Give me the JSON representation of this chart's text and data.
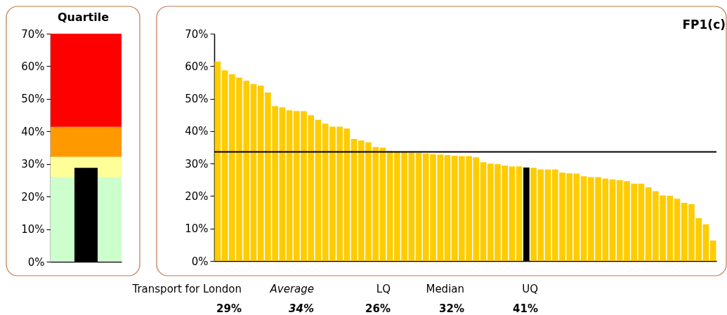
{
  "chart_data": [
    {
      "type": "bar",
      "title": "Quartile",
      "categories": [
        null
      ],
      "values": [
        28.8
      ],
      "colors": [
        "#000000"
      ],
      "ylim": [
        0,
        70
      ],
      "yticks": [
        {
          "value": 0,
          "label": "0%"
        },
        {
          "value": 10,
          "label": "10%"
        },
        {
          "value": 20,
          "label": "20%"
        },
        {
          "value": 30,
          "label": "30%"
        },
        {
          "value": 40,
          "label": "40%"
        },
        {
          "value": 50,
          "label": "50%"
        },
        {
          "value": 60,
          "label": "60%"
        },
        {
          "value": 70,
          "label": "70%"
        }
      ],
      "bands": [
        {
          "axis": "y",
          "from": 0,
          "to": 26.0,
          "color": "#ccffcc"
        },
        {
          "axis": "y",
          "from": 26.0,
          "to": 32.2,
          "color": "#ffff99"
        },
        {
          "axis": "y",
          "from": 32.2,
          "to": 41.4,
          "color": "#ff9900"
        },
        {
          "axis": "y",
          "from": 41.4,
          "to": 70,
          "color": "#ff0000"
        }
      ],
      "tick_labels": "y"
    },
    {
      "type": "bar",
      "title": "FP1(c)",
      "categories": [
        null,
        null,
        null,
        null,
        null,
        null,
        null,
        null,
        null,
        null,
        null,
        null,
        null,
        null,
        null,
        null,
        null,
        null,
        null,
        null,
        null,
        null,
        null,
        null,
        null,
        null,
        null,
        null,
        null,
        null,
        null,
        null,
        null,
        null,
        null,
        null,
        null,
        null,
        null,
        null,
        null,
        null,
        null,
        null,
        null,
        null,
        null,
        null,
        null,
        null,
        null,
        null,
        null,
        null,
        null,
        null,
        null,
        null,
        null,
        null,
        null,
        null,
        null,
        null,
        null,
        null,
        null,
        null,
        null,
        null
      ],
      "values": [
        61.4,
        58.7,
        57.5,
        56.5,
        55.5,
        54.5,
        54.0,
        51.9,
        47.7,
        47.3,
        46.4,
        46.2,
        46.1,
        44.9,
        43.5,
        42.3,
        41.4,
        41.4,
        40.8,
        37.6,
        37.1,
        36.5,
        35.1,
        34.9,
        33.8,
        33.6,
        33.5,
        33.4,
        33.3,
        33.1,
        32.9,
        32.8,
        32.6,
        32.4,
        32.3,
        32.3,
        31.9,
        30.4,
        30.0,
        29.8,
        29.4,
        29.1,
        29.1,
        28.8,
        28.7,
        28.2,
        28.2,
        28.2,
        27.2,
        27.0,
        26.9,
        26.1,
        25.8,
        25.8,
        25.4,
        25.1,
        24.9,
        24.6,
        23.8,
        23.8,
        22.7,
        21.5,
        20.2,
        20.1,
        19.2,
        17.9,
        17.5,
        13.2,
        11.3,
        6.3
      ],
      "colors": [
        "#ffcc00",
        "#ffcc00",
        "#ffcc00",
        "#ffcc00",
        "#ffcc00",
        "#ffcc00",
        "#ffcc00",
        "#ffcc00",
        "#ffcc00",
        "#ffcc00",
        "#ffcc00",
        "#ffcc00",
        "#ffcc00",
        "#ffcc00",
        "#ffcc00",
        "#ffcc00",
        "#ffcc00",
        "#ffcc00",
        "#ffcc00",
        "#ffcc00",
        "#ffcc00",
        "#ffcc00",
        "#ffcc00",
        "#ffcc00",
        "#ffcc00",
        "#ffcc00",
        "#ffcc00",
        "#ffcc00",
        "#ffcc00",
        "#ffcc00",
        "#ffcc00",
        "#ffcc00",
        "#ffcc00",
        "#ffcc00",
        "#ffcc00",
        "#ffcc00",
        "#ffcc00",
        "#ffcc00",
        "#ffcc00",
        "#ffcc00",
        "#ffcc00",
        "#ffcc00",
        "#ffcc00",
        "#000000",
        "#ffcc00",
        "#ffcc00",
        "#ffcc00",
        "#ffcc00",
        "#ffcc00",
        "#ffcc00",
        "#ffcc00",
        "#ffcc00",
        "#ffcc00",
        "#ffcc00",
        "#ffcc00",
        "#ffcc00",
        "#ffcc00",
        "#ffcc00",
        "#ffcc00",
        "#ffcc00",
        "#ffcc00",
        "#ffcc00",
        "#ffcc00",
        "#ffcc00",
        "#ffcc00",
        "#ffcc00",
        "#ffcc00",
        "#ffcc00",
        "#ffcc00",
        "#ffcc00"
      ],
      "ylim": [
        0,
        70
      ],
      "yticks": [
        {
          "value": 0,
          "label": "0%"
        },
        {
          "value": 10,
          "label": "10%"
        },
        {
          "value": 20,
          "label": "20%"
        },
        {
          "value": 30,
          "label": "30%"
        },
        {
          "value": 40,
          "label": "40%"
        },
        {
          "value": 50,
          "label": "50%"
        },
        {
          "value": 60,
          "label": "60%"
        },
        {
          "value": 70,
          "label": "70%"
        }
      ],
      "ref_lines": [
        {
          "axis": "y",
          "value": 33.6,
          "color": "#000000"
        }
      ],
      "tick_labels": "y",
      "annotations": [
        "Transport for London",
        "29%",
        "Average",
        "34%",
        "LQ",
        "26%",
        "Median",
        "32%",
        "UQ",
        "41%"
      ]
    }
  ]
}
